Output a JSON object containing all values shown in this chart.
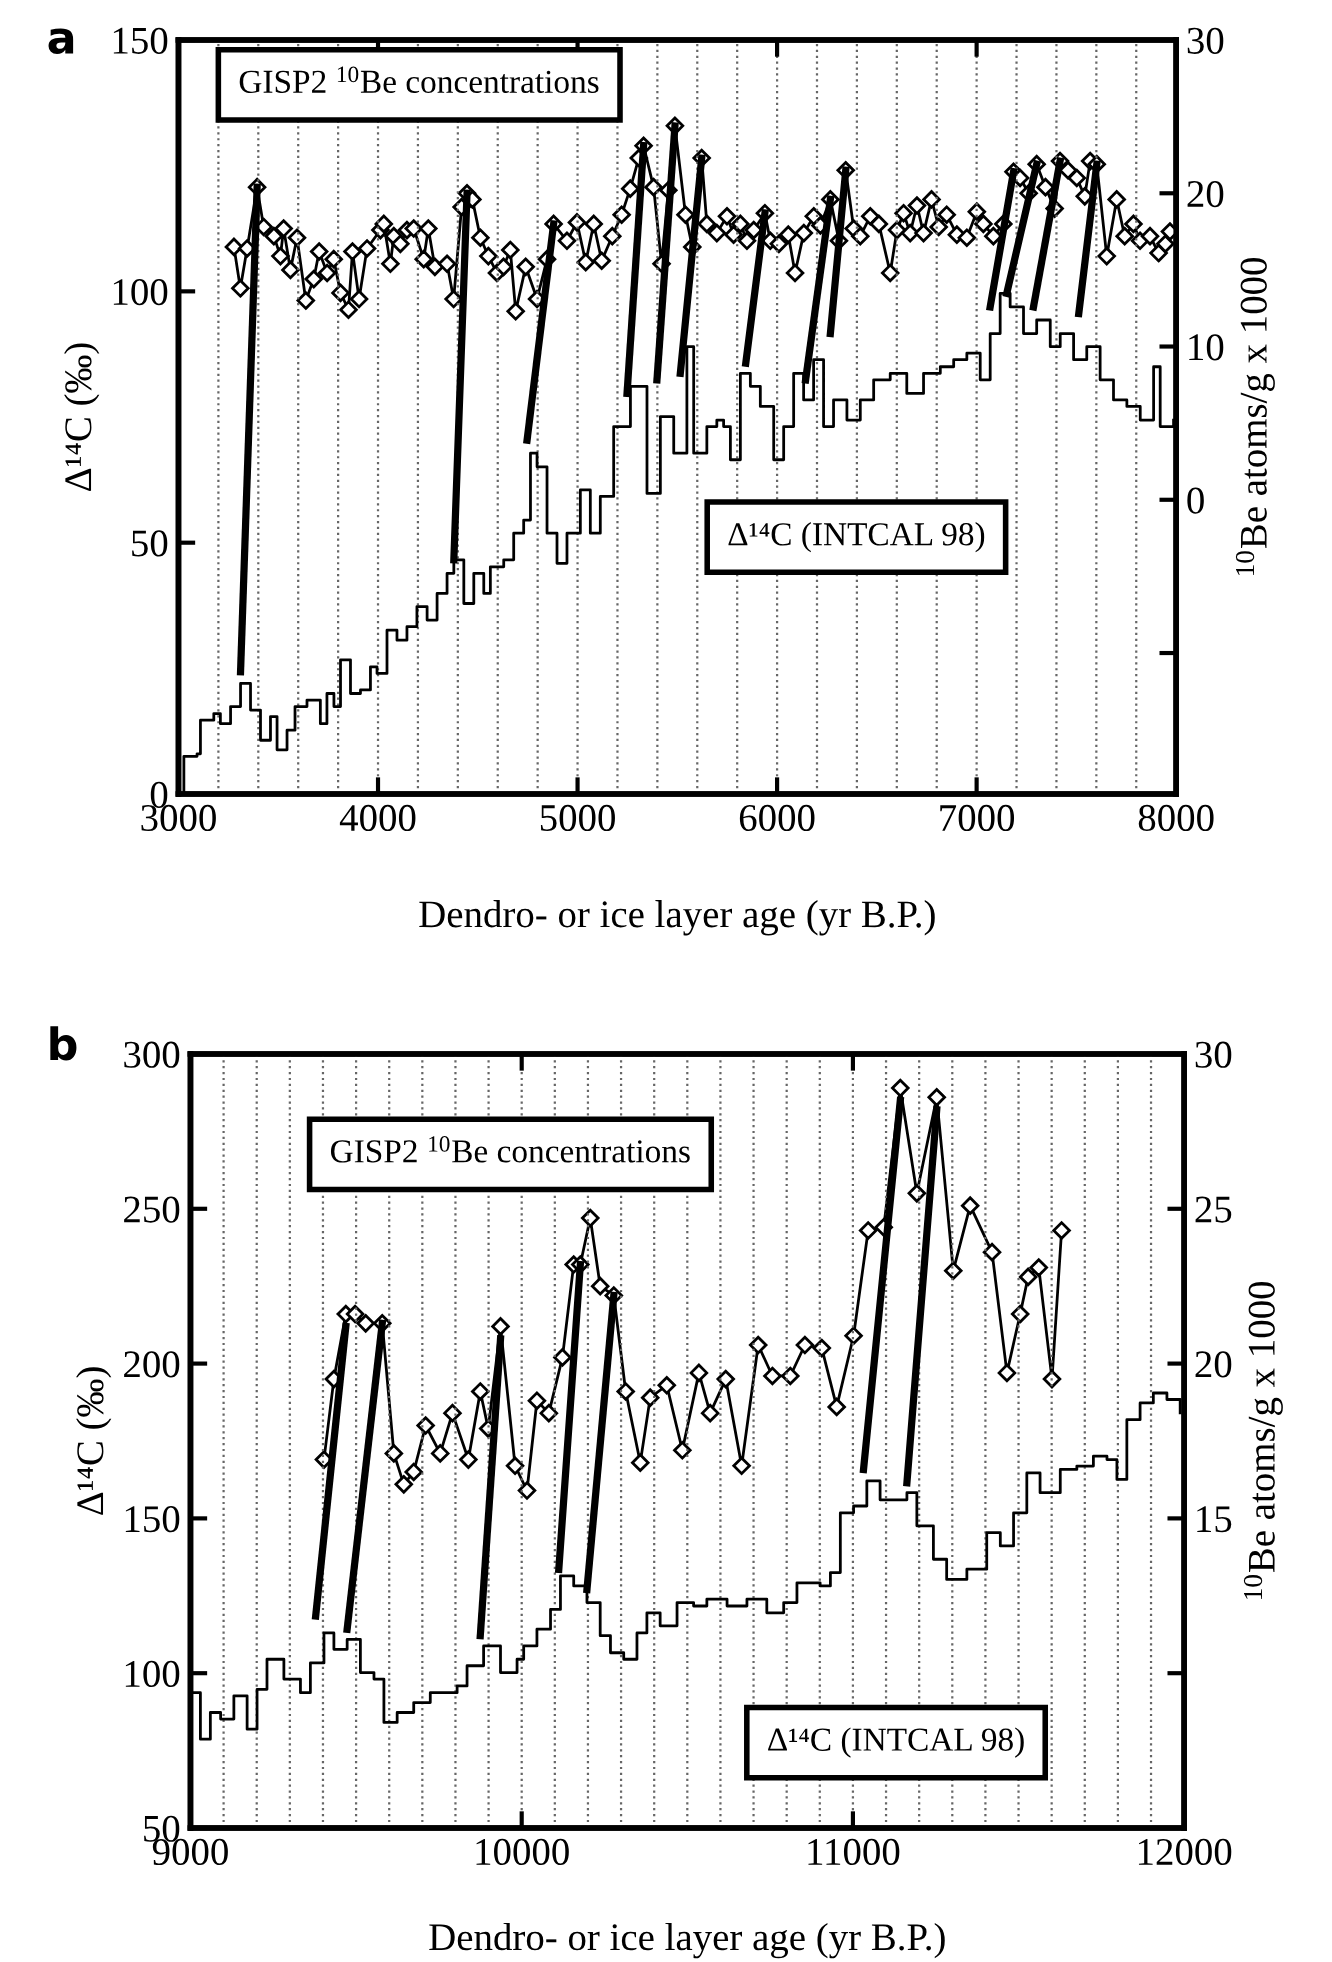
{
  "chart_data": [
    {
      "type": "line",
      "title": "a",
      "xlabel": "Dendro- or ice layer age (yr B.P.)",
      "ylabel": "Δ¹⁴C (‰)",
      "y2label": "$^{10}$Be atoms/g x 1000",
      "annotations": [
        "GISP2 $^{10}$Be concentrations",
        "Δ¹⁴C (INTCAL 98)"
      ],
      "xlim": [
        3000,
        8000
      ],
      "xticks": [
        3000,
        4000,
        5000,
        6000,
        7000,
        8000
      ],
      "ylim": [
        0,
        150
      ],
      "yticks": [
        0,
        50,
        100,
        150
      ],
      "y2lim": [
        -19.2,
        30
      ],
      "y2ticks": [
        {
          "value": -10,
          "label": null
        },
        0,
        10,
        20,
        30
      ],
      "grid": false,
      "legend": false,
      "series": [
        {
          "type": "line",
          "axis": "y2",
          "color": "#000000",
          "marker": "diamond",
          "x": [
            3278,
            3310,
            3344,
            3394,
            3427,
            3478,
            3511,
            3527,
            3561,
            3594,
            3638,
            3678,
            3705,
            3745,
            3778,
            3812,
            3852,
            3872,
            3905,
            3945,
            4012,
            4029,
            4062,
            4079,
            4112,
            4145,
            4179,
            4229,
            4252,
            4285,
            4346,
            4379,
            4419,
            4446,
            4473,
            4513,
            4553,
            4596,
            4629,
            4663,
            4690,
            4740,
            4797,
            4847,
            4880,
            4947,
            4997,
            5041,
            5081,
            5121,
            5174,
            5221,
            5264,
            5307,
            5331,
            5381,
            5421,
            5455,
            5488,
            5541,
            5575,
            5622,
            5648,
            5698,
            5749,
            5782,
            5816,
            5849,
            5883,
            5939,
            5966,
            6009,
            6056,
            6090,
            6134,
            6184,
            6217,
            6267,
            6310,
            6344,
            6384,
            6417,
            6467,
            6510,
            6567,
            6601,
            6634,
            6667,
            6701,
            6734,
            6774,
            6810,
            6850,
            6901,
            6951,
            7001,
            7034,
            7084,
            7134,
            7185,
            7218,
            7261,
            7301,
            7345,
            7391,
            7418,
            7458,
            7502,
            7542,
            7569,
            7602,
            7652,
            7702,
            7742,
            7786,
            7819,
            7869,
            7912,
            7946,
            7969
          ],
          "values": [
            16.5,
            13.8,
            16.4,
            20.4,
            17.8,
            17.2,
            15.9,
            17.7,
            15.0,
            17.1,
            13.0,
            14.4,
            16.2,
            14.8,
            15.7,
            13.5,
            12.4,
            16.2,
            13.1,
            16.4,
            17.6,
            18.0,
            15.4,
            17.2,
            16.7,
            17.6,
            17.7,
            15.7,
            17.7,
            15.2,
            15.4,
            13.1,
            19.1,
            20.0,
            19.6,
            17.1,
            15.9,
            14.8,
            15.2,
            16.3,
            12.3,
            15.2,
            13.1,
            15.7,
            18.0,
            16.9,
            18.1,
            15.5,
            18.0,
            15.6,
            17.2,
            18.6,
            20.3,
            22.3,
            23.1,
            20.4,
            15.4,
            20.2,
            24.4,
            18.6,
            16.5,
            22.3,
            18.0,
            17.4,
            18.5,
            17.3,
            18.0,
            16.9,
            17.6,
            18.7,
            16.9,
            16.7,
            17.3,
            14.8,
            17.4,
            18.5,
            17.9,
            19.6,
            16.9,
            21.5,
            17.7,
            17.2,
            18.5,
            18.0,
            14.8,
            17.6,
            18.7,
            17.4,
            19.2,
            17.4,
            19.6,
            17.8,
            18.6,
            17.3,
            17.1,
            18.8,
            18.0,
            17.2,
            18.0,
            21.4,
            21.0,
            20.0,
            21.9,
            20.4,
            19.0,
            22.1,
            21.5,
            21.0,
            19.8,
            22.1,
            21.9,
            15.9,
            19.6,
            17.2,
            18.0,
            16.9,
            17.2,
            16.1,
            16.7,
            17.5
          ]
        },
        {
          "type": "step",
          "color": "#000000",
          "marker": "none",
          "x": [
            3010,
            3027,
            3093,
            3110,
            3177,
            3210,
            3261,
            3311,
            3361,
            3411,
            3461,
            3494,
            3544,
            3584,
            3644,
            3711,
            3744,
            3779,
            3812,
            3862,
            3912,
            3962,
            3995,
            4045,
            4095,
            4145,
            4195,
            4246,
            4296,
            4346,
            4380,
            4430,
            4480,
            4530,
            4563,
            4630,
            4680,
            4730,
            4764,
            4797,
            4847,
            4897,
            4947,
            5014,
            5064,
            5114,
            5181,
            5265,
            5348,
            5415,
            5482,
            5548,
            5582,
            5648,
            5698,
            5732,
            5766,
            5816,
            5866,
            5916,
            5983,
            6033,
            6083,
            6133,
            6183,
            6233,
            6283,
            6350,
            6417,
            6484,
            6567,
            6650,
            6734,
            6818,
            6885,
            6951,
            7018,
            7068,
            7118,
            7168,
            7235,
            7301,
            7369,
            7419,
            7486,
            7552,
            7619,
            7686,
            7753,
            7820,
            7887,
            7920,
            7987
          ],
          "values": [
            0,
            7.5,
            8,
            14.7,
            16,
            14,
            17.4,
            22,
            16.7,
            10.7,
            15.4,
            8.8,
            12.7,
            17.4,
            18.7,
            14,
            20,
            17.4,
            26.7,
            20,
            20.7,
            25.3,
            24,
            32.6,
            30.6,
            33.3,
            37.3,
            34.6,
            39.9,
            43.9,
            46.6,
            37.9,
            43.9,
            39.9,
            45.2,
            46.6,
            51.9,
            54.5,
            67.8,
            65.1,
            51.9,
            45.9,
            51.9,
            60.5,
            51.9,
            59.2,
            73.1,
            81.1,
            59.8,
            75.1,
            67.8,
            89,
            67.8,
            73.1,
            74.4,
            73.1,
            66.5,
            83.7,
            81.1,
            77.1,
            66.5,
            73.1,
            83.7,
            78.4,
            86.4,
            73.1,
            78.4,
            74.4,
            78.4,
            82.4,
            83.7,
            79.7,
            83.7,
            85,
            86.4,
            87.7,
            82.4,
            91.6,
            99.6,
            96.9,
            91.6,
            94.3,
            89,
            91.6,
            86.4,
            89,
            82.4,
            78.4,
            77.1,
            74.4,
            85,
            73.1,
            74.4
          ]
        },
        {
          "type": "line",
          "color": "#000000",
          "marker": "none",
          "x": [
            3311,
            3394
          ],
          "values": [
            24.3,
            120.7
          ]
        },
        {
          "type": "line",
          "color": "#000000",
          "marker": "none",
          "x": [
            4380,
            4446
          ],
          "values": [
            46.6,
            119.5
          ]
        },
        {
          "type": "line",
          "color": "#000000",
          "marker": "none",
          "x": [
            4747,
            4880
          ],
          "values": [
            70.4,
            113.4
          ]
        },
        {
          "type": "line",
          "color": "#000000",
          "marker": "none",
          "x": [
            5248,
            5331
          ],
          "values": [
            79.7,
            129.0
          ]
        },
        {
          "type": "line",
          "color": "#000000",
          "marker": "none",
          "x": [
            5398,
            5488
          ],
          "values": [
            82.4,
            132.9
          ]
        },
        {
          "type": "line",
          "color": "#000000",
          "marker": "none",
          "x": [
            5515,
            5622
          ],
          "values": [
            83.7,
            126.5
          ]
        },
        {
          "type": "line",
          "color": "#000000",
          "marker": "none",
          "x": [
            5843,
            5939
          ],
          "values": [
            85.7,
            115.6
          ]
        },
        {
          "type": "line",
          "color": "#000000",
          "marker": "none",
          "x": [
            6143,
            6267
          ],
          "values": [
            82.4,
            118.3
          ]
        },
        {
          "type": "line",
          "color": "#000000",
          "marker": "none",
          "x": [
            6267,
            6344
          ],
          "values": [
            91.6,
            124.1
          ]
        },
        {
          "type": "line",
          "color": "#000000",
          "marker": "none",
          "x": [
            7068,
            7185
          ],
          "values": [
            96.9,
            123.8
          ]
        },
        {
          "type": "line",
          "color": "#000000",
          "marker": "none",
          "x": [
            7151,
            7301
          ],
          "values": [
            99.6,
            125.3
          ]
        },
        {
          "type": "line",
          "color": "#000000",
          "marker": "none",
          "x": [
            7285,
            7418
          ],
          "values": [
            96.9,
            125.9
          ]
        },
        {
          "type": "line",
          "color": "#000000",
          "marker": "none",
          "x": [
            7512,
            7602
          ],
          "values": [
            95.6,
            125.3
          ]
        }
      ],
      "ref_lines": [
        {
          "axis": "x",
          "value": 3200,
          "color": "#666666",
          "line_style": "dotted"
        },
        {
          "axis": "x",
          "value": 3400,
          "color": "#666666",
          "line_style": "dotted"
        },
        {
          "axis": "x",
          "value": 3600,
          "color": "#666666",
          "line_style": "dotted"
        },
        {
          "axis": "x",
          "value": 3800,
          "color": "#666666",
          "line_style": "dotted"
        },
        {
          "axis": "x",
          "value": 4000,
          "color": "#666666",
          "line_style": "dotted"
        },
        {
          "axis": "x",
          "value": 4200,
          "color": "#666666",
          "line_style": "dotted"
        },
        {
          "axis": "x",
          "value": 4400,
          "color": "#666666",
          "line_style": "dotted"
        },
        {
          "axis": "x",
          "value": 4600,
          "color": "#666666",
          "line_style": "dotted"
        },
        {
          "axis": "x",
          "value": 4800,
          "color": "#666666",
          "line_style": "dotted"
        },
        {
          "axis": "x",
          "value": 5000,
          "color": "#666666",
          "line_style": "dotted"
        },
        {
          "axis": "x",
          "value": 5200,
          "color": "#666666",
          "line_style": "dotted"
        },
        {
          "axis": "x",
          "value": 5400,
          "color": "#666666",
          "line_style": "dotted"
        },
        {
          "axis": "x",
          "value": 5600,
          "color": "#666666",
          "line_style": "dotted"
        },
        {
          "axis": "x",
          "value": 5800,
          "color": "#666666",
          "line_style": "dotted"
        },
        {
          "axis": "x",
          "value": 6000,
          "color": "#666666",
          "line_style": "dotted"
        },
        {
          "axis": "x",
          "value": 6200,
          "color": "#666666",
          "line_style": "dotted"
        },
        {
          "axis": "x",
          "value": 6400,
          "color": "#666666",
          "line_style": "dotted"
        },
        {
          "axis": "x",
          "value": 6600,
          "color": "#666666",
          "line_style": "dotted"
        },
        {
          "axis": "x",
          "value": 6800,
          "color": "#666666",
          "line_style": "dotted"
        },
        {
          "axis": "x",
          "value": 7000,
          "color": "#666666",
          "line_style": "dotted"
        },
        {
          "axis": "x",
          "value": 7200,
          "color": "#666666",
          "line_style": "dotted"
        },
        {
          "axis": "x",
          "value": 7400,
          "color": "#666666",
          "line_style": "dotted"
        },
        {
          "axis": "x",
          "value": 7600,
          "color": "#666666",
          "line_style": "dotted"
        },
        {
          "axis": "x",
          "value": 7800,
          "color": "#666666",
          "line_style": "dotted"
        }
      ]
    },
    {
      "type": "line",
      "title": "b",
      "xlabel": "Dendro- or ice layer age (yr B.P.)",
      "ylabel": "Δ¹⁴C (‰)",
      "y2label": "$^{10}$Be atoms/g x 1000",
      "annotations": [
        "GISP2 $^{10}$Be concentrations",
        "Δ¹⁴C (INTCAL 98)"
      ],
      "xlim": [
        9000,
        12000
      ],
      "xticks": [
        9000,
        10000,
        11000,
        12000
      ],
      "ylim": [
        50,
        300
      ],
      "yticks": [
        50,
        100,
        150,
        200,
        250,
        300
      ],
      "y2lim": [
        5,
        30
      ],
      "y2ticks": [
        {
          "value": 10,
          "label": null
        },
        15,
        20,
        25,
        30
      ],
      "grid": false,
      "legend": false,
      "series": [
        {
          "type": "line",
          "axis": "y2",
          "color": "#000000",
          "marker": "diamond",
          "x": [
            9403,
            9433,
            9469,
            9497,
            9529,
            9579,
            9614,
            9644,
            9674,
            9710,
            9754,
            9791,
            9839,
            9875,
            9899,
            9936,
            9980,
            10016,
            10046,
            10082,
            10123,
            10157,
            10177,
            10207,
            10237,
            10278,
            10314,
            10358,
            10388,
            10438,
            10485,
            10535,
            10569,
            10616,
            10664,
            10714,
            10757,
            10811,
            10855,
            10906,
            10951,
            11002,
            11046,
            11093,
            11143,
            11193,
            11253,
            11303,
            11354,
            11420,
            11465,
            11505,
            11529,
            11561,
            11601,
            11630
          ],
          "values": [
            16.9,
            19.5,
            21.6,
            21.6,
            21.3,
            21.3,
            17.1,
            16.1,
            16.5,
            18.0,
            17.1,
            18.4,
            16.9,
            19.1,
            17.9,
            21.2,
            16.7,
            15.9,
            18.8,
            18.4,
            20.2,
            23.2,
            23.2,
            24.7,
            22.5,
            22.2,
            19.1,
            16.8,
            18.9,
            19.3,
            17.2,
            19.7,
            18.4,
            19.5,
            16.7,
            20.6,
            19.6,
            19.6,
            20.6,
            20.5,
            18.6,
            20.9,
            24.3,
            24.4,
            28.9,
            25.5,
            28.6,
            23.0,
            25.1,
            23.6,
            19.7,
            21.6,
            22.8,
            23.1,
            19.5,
            24.3
          ]
        },
        {
          "type": "step",
          "color": "#000000",
          "marker": "none",
          "x": [
            9010,
            9030,
            9060,
            9091,
            9131,
            9171,
            9201,
            9231,
            9282,
            9332,
            9362,
            9403,
            9433,
            9473,
            9513,
            9554,
            9584,
            9624,
            9674,
            9724,
            9774,
            9805,
            9835,
            9885,
            9936,
            9986,
            10006,
            10046,
            10087,
            10117,
            10157,
            10197,
            10237,
            10268,
            10308,
            10348,
            10378,
            10418,
            10469,
            10519,
            10559,
            10620,
            10680,
            10740,
            10791,
            10831,
            10901,
            10932,
            10962,
            11002,
            11042,
            11082,
            11123,
            11163,
            11193,
            11243,
            11283,
            11344,
            11384,
            11404,
            11445,
            11485,
            11525,
            11565,
            11606,
            11626,
            11676,
            11726,
            11767,
            11797,
            11827,
            11867,
            11907,
            11948,
            11988
          ],
          "values": [
            93.7,
            78.7,
            87.3,
            85.2,
            92.7,
            81.9,
            94.8,
            104.5,
            98.1,
            93.7,
            103.3,
            113,
            107.7,
            110.9,
            100.2,
            98.1,
            84.1,
            87.3,
            90.5,
            93.7,
            93.7,
            95.9,
            102.4,
            108.8,
            100.2,
            104.5,
            108.8,
            114.2,
            120.6,
            131.4,
            128.2,
            122.8,
            112.1,
            106.6,
            104.5,
            113,
            119.5,
            115.3,
            122.8,
            121.7,
            123.9,
            121.7,
            123.9,
            119.5,
            122.8,
            129.2,
            128.2,
            132.5,
            151.8,
            154,
            162.1,
            156,
            156,
            158.3,
            147.6,
            136.8,
            130.3,
            133.6,
            133.6,
            145.4,
            141.1,
            151.8,
            164.7,
            158.3,
            158.3,
            165.8,
            166.9,
            170.1,
            169,
            162.6,
            181.9,
            187.3,
            190.5,
            188.4,
            184.1
          ]
        },
        {
          "type": "line",
          "color": "#000000",
          "marker": "none",
          "x": [
            9378,
            9469
          ],
          "values": [
            118.5,
            212
          ]
        },
        {
          "type": "line",
          "color": "#000000",
          "marker": "none",
          "x": [
            9473,
            9579
          ],
          "values": [
            114.2,
            213
          ]
        },
        {
          "type": "line",
          "color": "#000000",
          "marker": "none",
          "x": [
            9875,
            9936
          ],
          "values": [
            112.1,
            208
          ]
        },
        {
          "type": "line",
          "color": "#000000",
          "marker": "none",
          "x": [
            10112,
            10177
          ],
          "values": [
            133.5,
            232
          ]
        },
        {
          "type": "line",
          "color": "#000000",
          "marker": "none",
          "x": [
            10197,
            10278
          ],
          "values": [
            127,
            222
          ]
        },
        {
          "type": "line",
          "color": "#000000",
          "marker": "none",
          "x": [
            11032,
            11143
          ],
          "values": [
            165.8,
            285
          ]
        },
        {
          "type": "line",
          "color": "#000000",
          "marker": "none",
          "x": [
            11163,
            11253
          ],
          "values": [
            161.5,
            282
          ]
        }
      ],
      "ref_lines": [
        {
          "axis": "x",
          "value": 9100,
          "color": "#666666",
          "line_style": "dotted"
        },
        {
          "axis": "x",
          "value": 9200,
          "color": "#666666",
          "line_style": "dotted"
        },
        {
          "axis": "x",
          "value": 9300,
          "color": "#666666",
          "line_style": "dotted"
        },
        {
          "axis": "x",
          "value": 9400,
          "color": "#666666",
          "line_style": "dotted"
        },
        {
          "axis": "x",
          "value": 9500,
          "color": "#666666",
          "line_style": "dotted"
        },
        {
          "axis": "x",
          "value": 9600,
          "color": "#666666",
          "line_style": "dotted"
        },
        {
          "axis": "x",
          "value": 9700,
          "color": "#666666",
          "line_style": "dotted"
        },
        {
          "axis": "x",
          "value": 9800,
          "color": "#666666",
          "line_style": "dotted"
        },
        {
          "axis": "x",
          "value": 9900,
          "color": "#666666",
          "line_style": "dotted"
        },
        {
          "axis": "x",
          "value": 10000,
          "color": "#666666",
          "line_style": "dotted"
        },
        {
          "axis": "x",
          "value": 10100,
          "color": "#666666",
          "line_style": "dotted"
        },
        {
          "axis": "x",
          "value": 10200,
          "color": "#666666",
          "line_style": "dotted"
        },
        {
          "axis": "x",
          "value": 10300,
          "color": "#666666",
          "line_style": "dotted"
        },
        {
          "axis": "x",
          "value": 10400,
          "color": "#666666",
          "line_style": "dotted"
        },
        {
          "axis": "x",
          "value": 10500,
          "color": "#666666",
          "line_style": "dotted"
        },
        {
          "axis": "x",
          "value": 10600,
          "color": "#666666",
          "line_style": "dotted"
        },
        {
          "axis": "x",
          "value": 10700,
          "color": "#666666",
          "line_style": "dotted"
        },
        {
          "axis": "x",
          "value": 10800,
          "color": "#666666",
          "line_style": "dotted"
        },
        {
          "axis": "x",
          "value": 10900,
          "color": "#666666",
          "line_style": "dotted"
        },
        {
          "axis": "x",
          "value": 11000,
          "color": "#666666",
          "line_style": "dotted"
        },
        {
          "axis": "x",
          "value": 11100,
          "color": "#666666",
          "line_style": "dotted"
        },
        {
          "axis": "x",
          "value": 11200,
          "color": "#666666",
          "line_style": "dotted"
        },
        {
          "axis": "x",
          "value": 11300,
          "color": "#666666",
          "line_style": "dotted"
        },
        {
          "axis": "x",
          "value": 11400,
          "color": "#666666",
          "line_style": "dotted"
        },
        {
          "axis": "x",
          "value": 11500,
          "color": "#666666",
          "line_style": "dotted"
        },
        {
          "axis": "x",
          "value": 11600,
          "color": "#666666",
          "line_style": "dotted"
        },
        {
          "axis": "x",
          "value": 11700,
          "color": "#666666",
          "line_style": "dotted"
        },
        {
          "axis": "x",
          "value": 11800,
          "color": "#666666",
          "line_style": "dotted"
        },
        {
          "axis": "x",
          "value": 11900,
          "color": "#666666",
          "line_style": "dotted"
        }
      ]
    }
  ]
}
